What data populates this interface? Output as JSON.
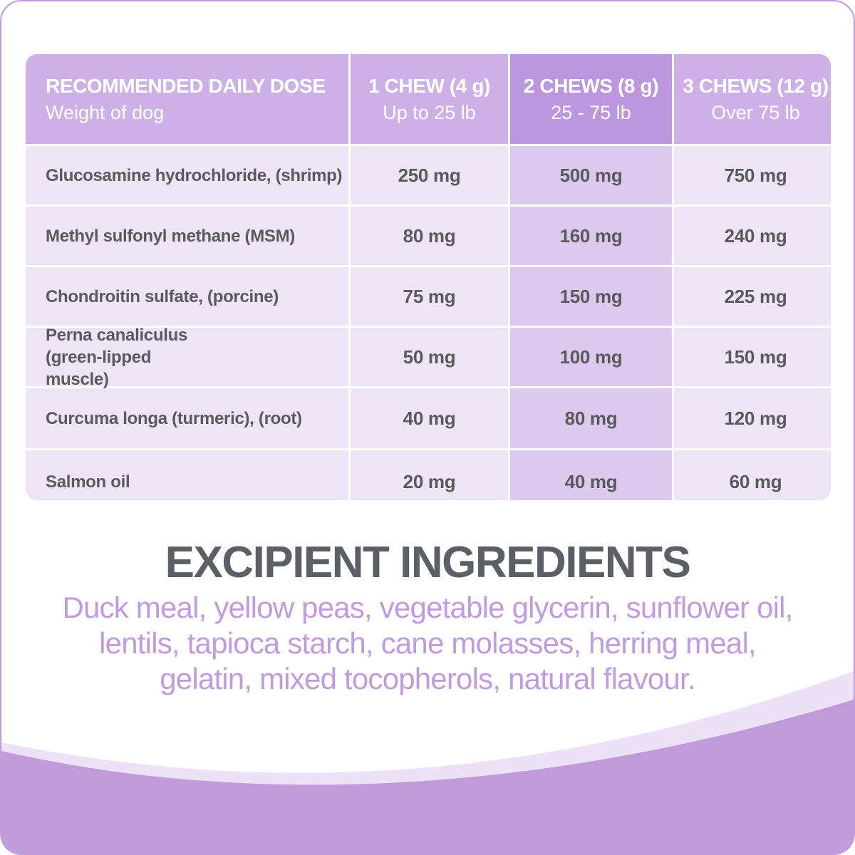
{
  "header": {
    "col0_title": "RECOMMENDED DAILY DOSE",
    "col0_sub": "Weight of dog",
    "col1_title": "1 CHEW (4 g)",
    "col1_sub": "Up to 25 lb",
    "col2_title": "2 CHEWS (8 g)",
    "col2_sub": "25 - 75 lb",
    "col3_title": "3 CHEWS (12 g)",
    "col3_sub": "Over 75 lb"
  },
  "rows": [
    {
      "ingredient": "Glucosamine hydrochloride, (shrimp)",
      "d1": "250 mg",
      "d2": "500 mg",
      "d3": "750 mg"
    },
    {
      "ingredient": "Methyl sulfonyl methane (MSM)",
      "d1": "80 mg",
      "d2": "160 mg",
      "d3": "240 mg"
    },
    {
      "ingredient": "Chondroitin sulfate, (porcine)",
      "d1": "75 mg",
      "d2": "150 mg",
      "d3": "225 mg"
    },
    {
      "ingredient": "Perna canaliculus (green-lipped muscle)",
      "d1": "50 mg",
      "d2": "100 mg",
      "d3": "150 mg"
    },
    {
      "ingredient": "Curcuma longa (turmeric), (root)",
      "d1": "40 mg",
      "d2": "80 mg",
      "d3": "120 mg"
    },
    {
      "ingredient": "Salmon oil",
      "d1": "20 mg",
      "d2": "40 mg",
      "d3": "60 mg"
    }
  ],
  "excipient": {
    "title": "EXCIPIENT INGREDIENTS",
    "line1": "Duck meal, yellow peas, vegetable glycerin, sunflower oil,",
    "line2": "lentils, tapioca starch, cane molasses, herring meal,",
    "line3": "gelatin, mixed tocopherols, natural flavour."
  },
  "colors": {
    "header_bg": "#cdb1e6",
    "header_highlight_bg": "#bc97dd",
    "cell_bg": "#ede4f5",
    "cell_highlight_bg": "#ddc9ee",
    "title_text": "#5d5f66",
    "excipient_text": "#c29ae0",
    "wave": "#c09ad9"
  }
}
